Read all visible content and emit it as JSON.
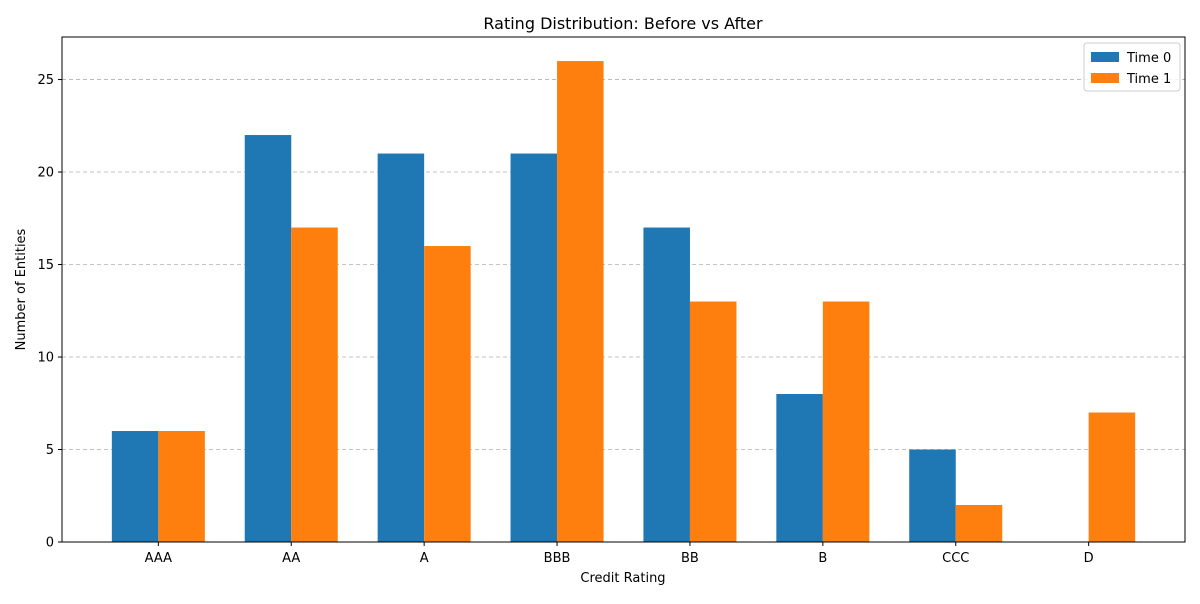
{
  "chart_data": {
    "type": "bar",
    "title": "Rating Distribution: Before vs After",
    "xlabel": "Credit Rating",
    "ylabel": "Number of Entities",
    "categories": [
      "AAA",
      "AA",
      "A",
      "BBB",
      "BB",
      "B",
      "CCC",
      "D"
    ],
    "series": [
      {
        "name": "Time 0",
        "color": "#1f77b4",
        "values": [
          6,
          22,
          21,
          21,
          17,
          8,
          5,
          0
        ]
      },
      {
        "name": "Time 1",
        "color": "#ff7f0e",
        "values": [
          6,
          17,
          16,
          26,
          13,
          13,
          2,
          7
        ]
      }
    ],
    "ylim": [
      0,
      27.3
    ],
    "yticks": [
      0,
      5,
      10,
      15,
      20,
      25
    ],
    "grid": "horizontal-dashed",
    "legend_position": "top-right"
  }
}
